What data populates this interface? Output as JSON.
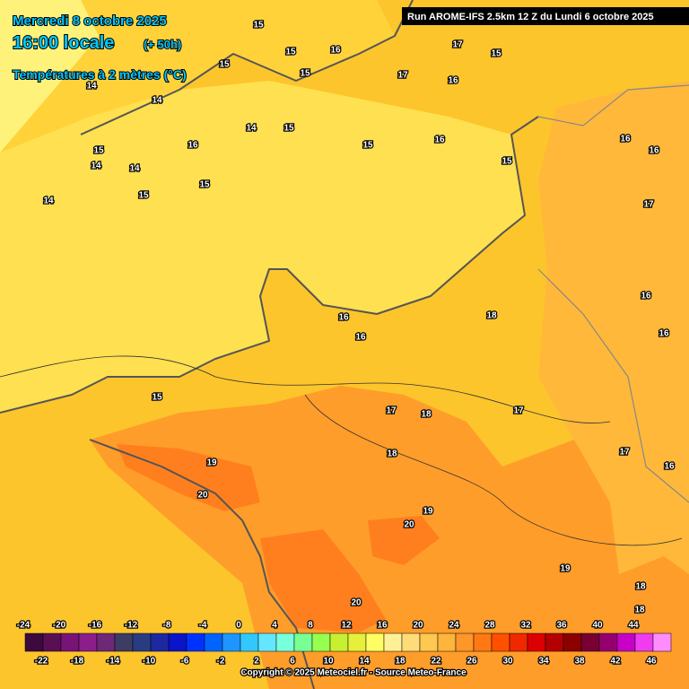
{
  "header": {
    "date": "Mercredi 8 octobre 2025",
    "time": "16:00 locale",
    "lead": "(+ 50h)",
    "variable": "Températures à 2 mètres (°C)",
    "run": "Run AROME-IFS 2.5km 12 Z du Lundi 6 octobre 2025"
  },
  "legend": {
    "values": [
      -24,
      -22,
      -20,
      -18,
      -16,
      -14,
      -12,
      -10,
      -8,
      -6,
      -4,
      -2,
      0,
      2,
      4,
      6,
      8,
      10,
      12,
      14,
      16,
      18,
      20,
      22,
      24,
      26,
      28,
      30,
      32,
      34,
      36,
      38,
      40,
      42,
      44,
      46
    ],
    "colors": [
      "#3c0a3c",
      "#5a0f55",
      "#781478",
      "#8c1e8c",
      "#6e2878",
      "#3c3c64",
      "#283c82",
      "#1e28a0",
      "#0a14c8",
      "#0032ff",
      "#0064ff",
      "#1e96ff",
      "#32c8ff",
      "#64e6ff",
      "#78ffdc",
      "#78ff96",
      "#96ff50",
      "#c8f032",
      "#e6f03c",
      "#ffff64",
      "#fff096",
      "#ffdc78",
      "#ffc850",
      "#ffb43c",
      "#ff9628",
      "#ff7814",
      "#ff5000",
      "#f02800",
      "#dc0000",
      "#b40000",
      "#8c0000",
      "#780032",
      "#96006e",
      "#c800c8",
      "#f03cf0",
      "#ff8cff"
    ]
  },
  "contour_labels": [
    15,
    15,
    16,
    15,
    15,
    14,
    17,
    17,
    15,
    16,
    14,
    14,
    15,
    15,
    16,
    15,
    16,
    14,
    14,
    15,
    15,
    14,
    15,
    16,
    16,
    17,
    16,
    16,
    18,
    16,
    16,
    15,
    17,
    18,
    17,
    18,
    17,
    16,
    19,
    20,
    19,
    20,
    19,
    18,
    18,
    20
  ],
  "footer": "Copyright © 2025 Meteociel.fr - Source Meteo-France"
}
